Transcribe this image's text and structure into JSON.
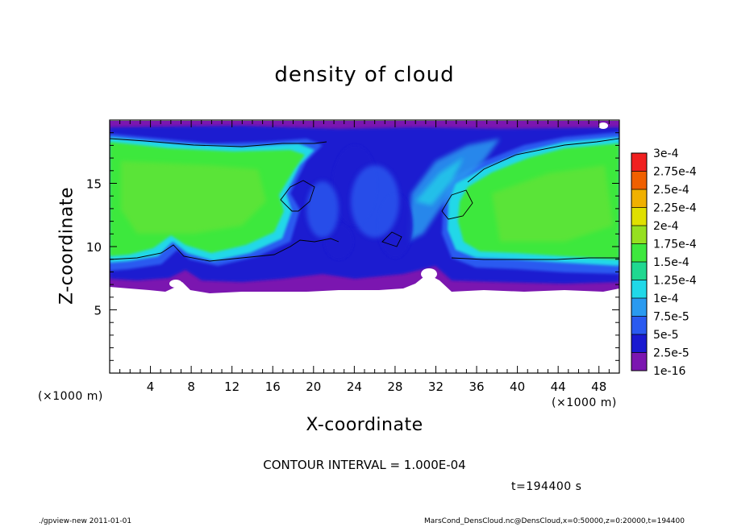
{
  "chart_data": {
    "type": "heatmap",
    "title": "density of cloud",
    "xlabel": "X-coordinate",
    "ylabel": "Z-coordinate",
    "x_unit": "(×1000 m)",
    "xlim": [
      0,
      50
    ],
    "ylim": [
      0,
      20
    ],
    "x_ticks": [
      4,
      8,
      12,
      16,
      20,
      24,
      28,
      32,
      36,
      40,
      44,
      48
    ],
    "y_ticks": [
      5,
      10,
      15
    ],
    "colorbar": {
      "levels": [
        "1e-16",
        "2.5e-5",
        "5e-5",
        "7.5e-5",
        "1e-4",
        "1.25e-4",
        "1.5e-4",
        "1.75e-4",
        "2e-4",
        "2.25e-4",
        "2.5e-4",
        "2.75e-4",
        "3e-4"
      ],
      "colors": [
        "#7b16b0",
        "#1a1ad0",
        "#2a5af0",
        "#2a9af0",
        "#20d8e8",
        "#20d890",
        "#3ee83e",
        "#96e020",
        "#e0e000",
        "#f0b000",
        "#f06000",
        "#f02020",
        "#f08080"
      ]
    },
    "contour_interval": "CONTOUR INTERVAL = 1.000E-04",
    "time": "t=194400 s",
    "field_summary": {
      "cloud_base_z": 6.5,
      "cloud_top_z": 19.5,
      "high_density_region_left": "x 0-17, z 9-18, ~1.5e-4",
      "high_density_region_right": "x 34-50, z 9-18, ~1.5e-4",
      "low_density_center": "x 18-33, ~2.5e-5 to 1e-4",
      "lower_edge_band": "z 6.5-9, ~2.5e-5 to 1e-4"
    }
  },
  "footer": {
    "left": "./gpview-new   2011-01-01",
    "right": "MarsCond_DensCloud.nc@DensCloud,x=0:50000,z=0:20000,t=194400"
  }
}
